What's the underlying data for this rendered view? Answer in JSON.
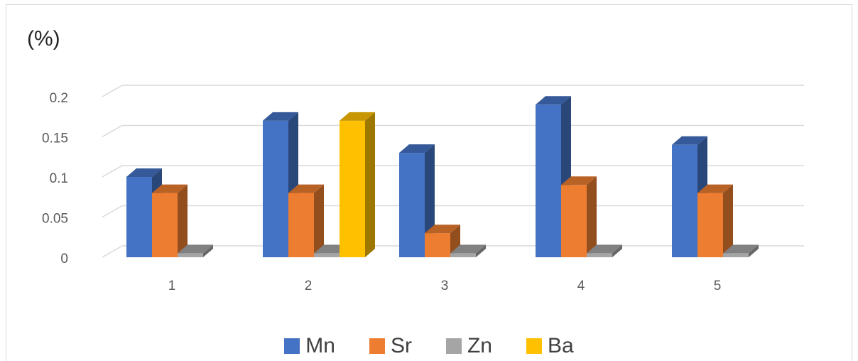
{
  "chart_data": {
    "type": "bar",
    "unit_label": "(%)",
    "categories": [
      "1",
      "2",
      "3",
      "4",
      "5"
    ],
    "y_ticks": [
      "0",
      "0.05",
      "0.1",
      "0.15",
      "0.2"
    ],
    "ylim": [
      0,
      0.2
    ],
    "grid": true,
    "legend_position": "bottom",
    "series": [
      {
        "name": "Mn",
        "color": "#4472C4",
        "values": [
          0.1,
          0.17,
          0.13,
          0.19,
          0.14
        ]
      },
      {
        "name": "Sr",
        "color": "#ED7D31",
        "values": [
          0.08,
          0.08,
          0.03,
          0.09,
          0.08
        ]
      },
      {
        "name": "Zn",
        "color": "#A5A5A5",
        "values": [
          0.005,
          0.005,
          0.005,
          0.005,
          0.005
        ]
      },
      {
        "name": "Ba",
        "color": "#FFC000",
        "values": [
          0,
          0.17,
          0,
          0,
          0
        ]
      }
    ]
  }
}
